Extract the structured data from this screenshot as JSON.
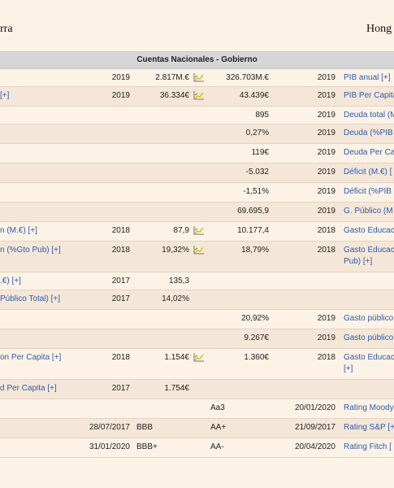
{
  "header": {
    "country_left": "rra",
    "country_right": "Hong"
  },
  "section": {
    "title": "Cuentas Nacionales - Gobierno"
  },
  "rows": [
    {
      "type": "data",
      "h": 22,
      "label": "",
      "year1": "2019",
      "val1": "2.817M.€",
      "chart": true,
      "val2": "326.703M.€",
      "ryear": "2019",
      "rlabel": "PIB anual [+]"
    },
    {
      "type": "data",
      "h": 24,
      "label": "[+]",
      "year1": "2019",
      "val1": "36.334€",
      "chart": true,
      "val2": "43.439€",
      "ryear": "2019",
      "rlabel": "PIB Per Capita"
    },
    {
      "type": "data",
      "h": 22,
      "label": "",
      "year1": "",
      "val1": "",
      "chart": false,
      "val2": "895",
      "ryear": "2019",
      "rlabel": "Deuda total (M"
    },
    {
      "type": "data",
      "h": 24,
      "label": "",
      "year1": "",
      "val1": "",
      "chart": false,
      "val2": "0,27%",
      "ryear": "2019",
      "rlabel": "Deuda (%PIB"
    },
    {
      "type": "data",
      "h": 24,
      "label": "",
      "year1": "",
      "val1": "",
      "chart": false,
      "val2": "119€",
      "ryear": "2019",
      "rlabel": "Deuda Per Ca"
    },
    {
      "type": "data",
      "h": 24,
      "label": "",
      "year1": "",
      "val1": "",
      "chart": false,
      "val2": "-5.032",
      "ryear": "2019",
      "rlabel": "Déficit (M.€) ["
    },
    {
      "type": "data",
      "h": 24,
      "label": "",
      "year1": "",
      "val1": "",
      "chart": false,
      "val2": "-1,51%",
      "ryear": "2019",
      "rlabel": "Déficit (%PIB"
    },
    {
      "type": "data",
      "h": 24,
      "label": "",
      "year1": "",
      "val1": "",
      "chart": false,
      "val2": "69.695,9",
      "ryear": "2019",
      "rlabel": "G. Público (M"
    },
    {
      "type": "data",
      "h": 24,
      "label": "n (M.€) [+]",
      "year1": "2018",
      "val1": "87,9",
      "chart": true,
      "val2": "10.177,4",
      "ryear": "2018",
      "rlabel": "Gasto Educac"
    },
    {
      "type": "data",
      "h": 38,
      "label": "n (%Gto Pub) [+]",
      "year1": "2018",
      "val1": "19,32%",
      "chart": true,
      "val2": "18,79%",
      "ryear": "2018",
      "rlabel": "Gasto Educac",
      "rlabel2": "Pub) [+]"
    },
    {
      "type": "data",
      "h": 22,
      "label": ".€) [+]",
      "year1": "2017",
      "val1": "135,3",
      "chart": false,
      "val2": "",
      "ryear": "",
      "rlabel": ""
    },
    {
      "type": "data",
      "h": 24,
      "label": "Público Total) [+]",
      "year1": "2017",
      "val1": "14,02%",
      "chart": false,
      "val2": "",
      "ryear": "",
      "rlabel": ""
    },
    {
      "type": "data",
      "h": 24,
      "label": "",
      "year1": "",
      "val1": "",
      "chart": false,
      "val2": "20,92%",
      "ryear": "2019",
      "rlabel": "Gasto público"
    },
    {
      "type": "data",
      "h": 24,
      "label": "",
      "year1": "",
      "val1": "",
      "chart": false,
      "val2": "9.267€",
      "ryear": "2019",
      "rlabel": "Gasto público"
    },
    {
      "type": "data",
      "h": 38,
      "label": "on Per Capita [+]",
      "year1": "2018",
      "val1": "1.154€",
      "chart": true,
      "val2": "1.360€",
      "ryear": "2018",
      "rlabel": "Gasto Educac",
      "rlabel2": "[+]"
    },
    {
      "type": "data",
      "h": 24,
      "label": "d Per Capita [+]",
      "year1": "2017",
      "val1": "1.754€",
      "chart": false,
      "val2": "",
      "ryear": "",
      "rlabel": ""
    },
    {
      "type": "rating",
      "h": 24,
      "date": "",
      "left": "",
      "mid": "Aa3",
      "ryear": "20/01/2020",
      "rlabel": "Rating Moody"
    },
    {
      "type": "rating",
      "h": 24,
      "date": "28/07/2017",
      "left": "BBB",
      "mid": "AA+",
      "ryear": "21/09/2017",
      "rlabel": "Rating S&P [+"
    },
    {
      "type": "rating",
      "h": 24,
      "date": "31/01/2020",
      "left": "BBB+",
      "mid": "AA-",
      "ryear": "20/04/2020",
      "rlabel": "Rating Fitch ["
    }
  ],
  "colors": {
    "link": "#2a5db0",
    "row_odd": "#fdf2e6",
    "row_even": "#f5e7d8",
    "header_bg": "#d6d6d6"
  },
  "icons": {
    "chart": "line-chart-icon"
  }
}
